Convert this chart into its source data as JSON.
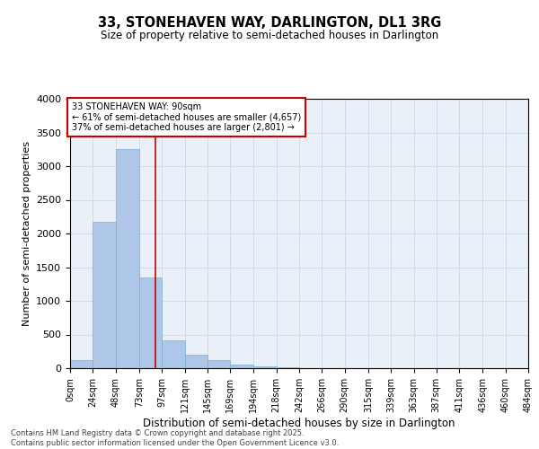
{
  "title1": "33, STONEHAVEN WAY, DARLINGTON, DL1 3RG",
  "title2": "Size of property relative to semi-detached houses in Darlington",
  "xlabel": "Distribution of semi-detached houses by size in Darlington",
  "ylabel": "Number of semi-detached properties",
  "property_size": 90,
  "property_label": "33 STONEHAVEN WAY: 90sqm",
  "pct_smaller": 61,
  "count_smaller": 4657,
  "pct_larger": 37,
  "count_larger": 2801,
  "bin_edges": [
    0,
    24,
    48,
    73,
    97,
    121,
    145,
    169,
    194,
    218,
    242,
    266,
    290,
    315,
    339,
    363,
    387,
    411,
    436,
    460,
    484
  ],
  "bar_values": [
    120,
    2170,
    3250,
    1350,
    420,
    200,
    120,
    55,
    30,
    10,
    5,
    2,
    1,
    0,
    0,
    0,
    0,
    0,
    0,
    0
  ],
  "bar_color": "#aec6e8",
  "bar_edge_color": "#7bafd4",
  "vline_x": 90,
  "vline_color": "#cc0000",
  "annotation_box_color": "#cc0000",
  "grid_color": "#c8d8e8",
  "bg_color": "#eaf0f8",
  "ylim": [
    0,
    4000
  ],
  "yticks": [
    0,
    500,
    1000,
    1500,
    2000,
    2500,
    3000,
    3500,
    4000
  ],
  "footer1": "Contains HM Land Registry data © Crown copyright and database right 2025.",
  "footer2": "Contains public sector information licensed under the Open Government Licence v3.0."
}
